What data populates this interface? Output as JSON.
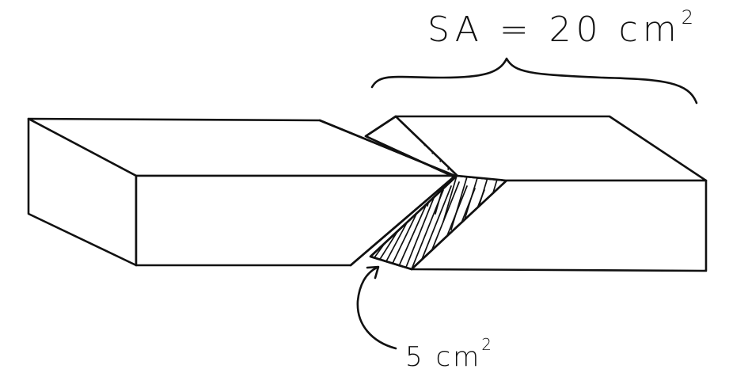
{
  "labels": {
    "total_area_base": "SA = 20 cm",
    "total_area_exponent": "2",
    "cut_area_base": "5 cm",
    "cut_area_exponent": "2"
  },
  "colors": {
    "ink": "#111111",
    "paper": "#ffffff"
  }
}
